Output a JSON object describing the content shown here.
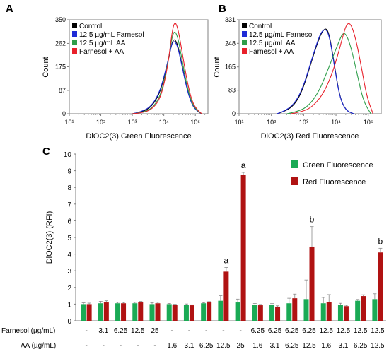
{
  "colors": {
    "control": "#000000",
    "farnesol": "#1f2bd6",
    "aa": "#2e9e4a",
    "farnesol_aa": "#e8202a",
    "green_bar": "#1aaa55",
    "red_bar": "#b01212",
    "axis": "#808080"
  },
  "chart_data": [
    {
      "type": "line",
      "panel": "A",
      "xlabel": "DiOC2(3) Green Fluorescence",
      "ylabel": "Count",
      "x_scale": "log",
      "x_ticks": [
        "10¹",
        "10²",
        "10³",
        "10⁴",
        "10⁵"
      ],
      "y_ticks": [
        "0",
        "87",
        "175",
        "262",
        "350"
      ],
      "ylim": [
        0,
        350
      ],
      "legend": [
        "Control",
        "12.5 µg/mL Farnesol",
        "12.5 µg/mL AA",
        "Farnesol + AA"
      ],
      "series": [
        {
          "name": "Control",
          "color": "#000000",
          "x": [
            1000,
            2000,
            4000,
            7000,
            10000,
            14000,
            18000,
            22000,
            28000,
            38000,
            55000,
            80000,
            120000,
            160000
          ],
          "values": [
            0,
            6,
            25,
            70,
            130,
            200,
            265,
            280,
            255,
            180,
            90,
            30,
            8,
            0
          ]
        },
        {
          "name": "12.5 µg/mL Farnesol",
          "color": "#1f2bd6",
          "x": [
            1000,
            2000,
            4000,
            7000,
            10000,
            14000,
            18000,
            22000,
            28000,
            38000,
            55000,
            80000,
            120000,
            160000
          ],
          "values": [
            0,
            8,
            28,
            75,
            135,
            205,
            262,
            272,
            248,
            175,
            88,
            30,
            8,
            0
          ]
        },
        {
          "name": "12.5 µg/mL AA",
          "color": "#2e9e4a",
          "x": [
            1000,
            2000,
            4000,
            7000,
            10000,
            14000,
            18000,
            22000,
            28000,
            38000,
            55000,
            80000,
            120000,
            160000
          ],
          "values": [
            0,
            4,
            18,
            55,
            115,
            200,
            285,
            310,
            285,
            200,
            100,
            35,
            10,
            0
          ]
        },
        {
          "name": "Farnesol + AA",
          "color": "#e8202a",
          "x": [
            1000,
            2000,
            4000,
            7000,
            10000,
            14000,
            18000,
            22000,
            28000,
            38000,
            55000,
            80000,
            120000,
            160000
          ],
          "values": [
            0,
            3,
            15,
            48,
            105,
            195,
            300,
            345,
            320,
            230,
            120,
            42,
            12,
            0
          ]
        }
      ]
    },
    {
      "type": "line",
      "panel": "B",
      "xlabel": "DiOC2(3) Red Fluorescence",
      "ylabel": "Count",
      "x_scale": "log",
      "x_ticks": [
        "10¹",
        "10²",
        "10³",
        "10⁴",
        "10⁵"
      ],
      "y_ticks": [
        "0",
        "83",
        "165",
        "248",
        "331"
      ],
      "ylim": [
        0,
        331
      ],
      "legend": [
        "Control",
        "12.5 µg/mL Farnesol",
        "12.5 µg/mL AA",
        "Farnesol + AA"
      ],
      "series": [
        {
          "name": "Control",
          "color": "#000000",
          "x": [
            150,
            300,
            600,
            1000,
            1600,
            2500,
            3500,
            5000,
            6500,
            9000,
            13000,
            20000,
            35000
          ],
          "values": [
            0,
            10,
            40,
            95,
            170,
            240,
            285,
            305,
            270,
            170,
            60,
            12,
            0
          ]
        },
        {
          "name": "12.5 µg/mL Farnesol",
          "color": "#1f2bd6",
          "x": [
            150,
            300,
            600,
            1000,
            1600,
            2500,
            3500,
            5000,
            6500,
            9000,
            13000,
            20000,
            35000
          ],
          "values": [
            0,
            12,
            45,
            100,
            175,
            245,
            290,
            300,
            265,
            165,
            58,
            12,
            0
          ]
        },
        {
          "name": "12.5 µg/mL AA",
          "color": "#2e9e4a",
          "x": [
            300,
            700,
            1500,
            3000,
            5000,
            8000,
            12000,
            16000,
            21000,
            30000,
            45000,
            70000,
            120000
          ],
          "values": [
            0,
            8,
            30,
            80,
            140,
            200,
            250,
            285,
            280,
            230,
            140,
            45,
            0
          ]
        },
        {
          "name": "Farnesol + AA",
          "color": "#e8202a",
          "x": [
            400,
            1000,
            2000,
            4000,
            7000,
            11000,
            16000,
            21000,
            28000,
            40000,
            60000,
            90000,
            140000
          ],
          "values": [
            0,
            8,
            28,
            70,
            130,
            200,
            270,
            315,
            320,
            270,
            170,
            60,
            0
          ]
        }
      ]
    },
    {
      "type": "bar",
      "panel": "C",
      "ylabel": "DiOC2(3) (RFI)",
      "ylim": [
        0,
        10
      ],
      "y_ticks": [
        "0",
        "1",
        "2",
        "3",
        "4",
        "5",
        "6",
        "7",
        "8",
        "9",
        "10"
      ],
      "row_labels": [
        "Farnesol (µg/mL)",
        "AA (µg/mL)"
      ],
      "farnesol_labels": [
        "-",
        "3.1",
        "6.25",
        "12.5",
        "25",
        "-",
        "-",
        "-",
        "-",
        "-",
        "6.25",
        "6.25",
        "6.25",
        "6.25",
        "12.5",
        "12.5",
        "12.5",
        "12.5"
      ],
      "aa_labels": [
        "-",
        "-",
        "-",
        "-",
        "-",
        "1.6",
        "3.1",
        "6.25",
        "12.5",
        "25",
        "1.6",
        "3.1",
        "6.25",
        "12.5",
        "1.6",
        "3.1",
        "6.25",
        "12.5"
      ],
      "series": [
        {
          "name": "Green Fluorescence",
          "color": "#1aaa55",
          "values": [
            1.0,
            1.05,
            1.05,
            1.05,
            1.0,
            1.0,
            0.97,
            1.05,
            1.2,
            1.1,
            0.97,
            0.95,
            1.05,
            1.3,
            1.05,
            0.97,
            1.2,
            1.3
          ],
          "errors": [
            0.08,
            0.12,
            0.06,
            0.06,
            0.08,
            0.04,
            0.04,
            0.04,
            0.3,
            0.2,
            0.07,
            0.08,
            0.3,
            1.15,
            0.35,
            0.08,
            0.08,
            0.32
          ]
        },
        {
          "name": "Red Fluorescence",
          "color": "#b01212",
          "values": [
            1.0,
            1.1,
            1.05,
            1.1,
            1.05,
            0.95,
            0.93,
            1.1,
            2.95,
            8.75,
            0.93,
            0.85,
            1.35,
            4.45,
            1.12,
            0.88,
            1.48,
            4.1
          ],
          "errors": [
            0.06,
            0.1,
            0.05,
            0.06,
            0.06,
            0.04,
            0.03,
            0.05,
            0.25,
            0.15,
            0.05,
            0.05,
            0.25,
            1.2,
            0.45,
            0.05,
            0.08,
            0.25
          ]
        }
      ],
      "annotations": [
        {
          "group": 8,
          "text": "a"
        },
        {
          "group": 9,
          "text": "a"
        },
        {
          "group": 13,
          "text": "b"
        },
        {
          "group": 17,
          "text": "b"
        }
      ]
    }
  ],
  "panel_labels": {
    "a": "A",
    "b": "B",
    "c": "C"
  }
}
